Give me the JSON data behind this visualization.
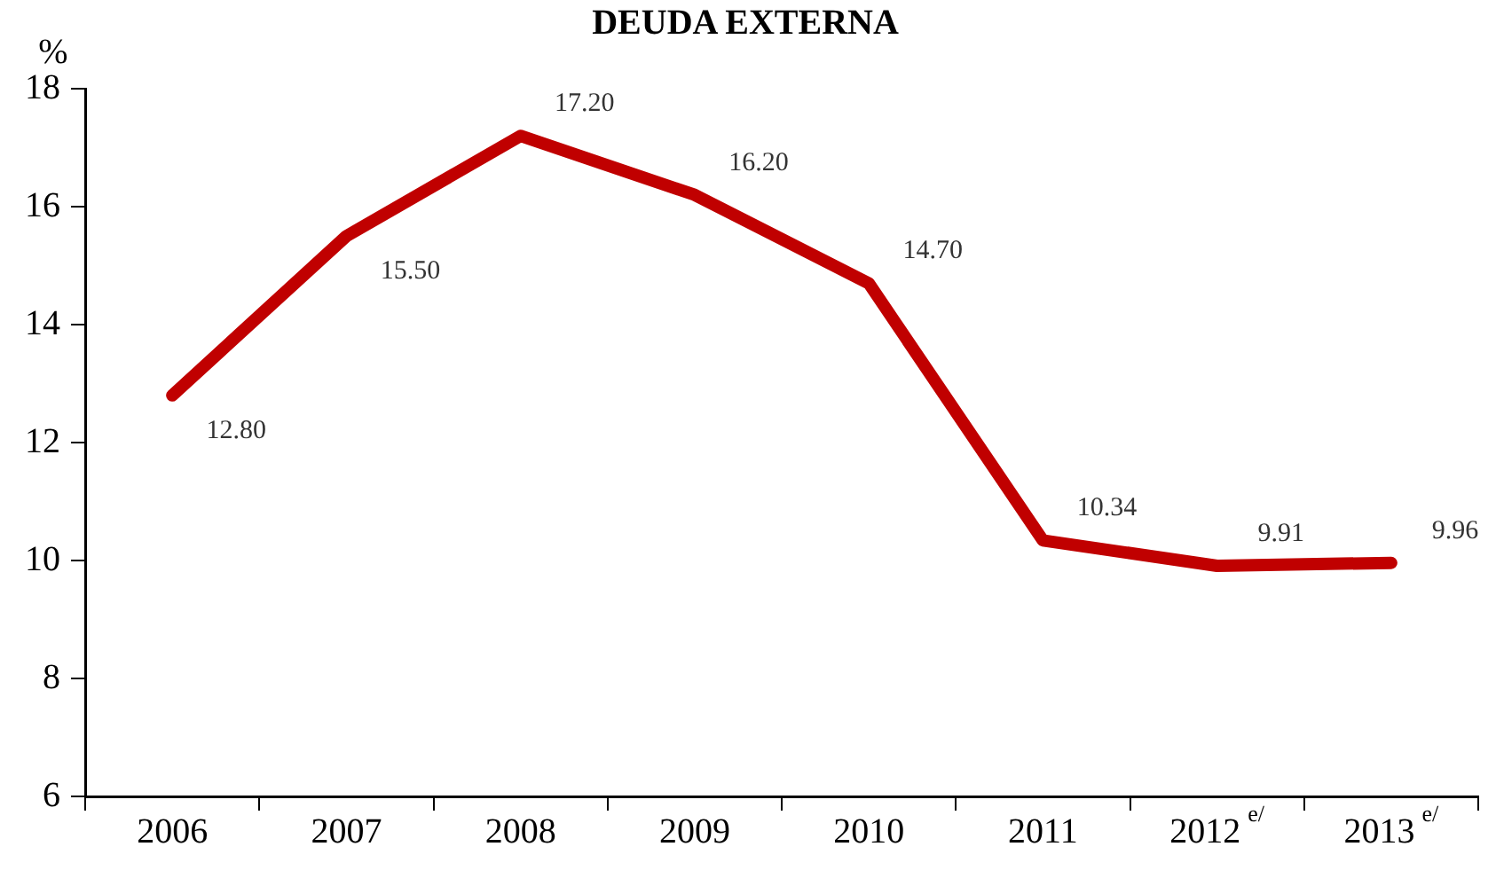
{
  "chart_data": {
    "type": "line",
    "title": "DEUDA EXTERNA",
    "ylabel": "%",
    "categories": [
      "2006",
      "2007",
      "2008",
      "2009",
      "2010",
      "2011",
      "2012$^{e/}$",
      "2013$^{e/}$"
    ],
    "series": [
      {
        "color": "#c00000",
        "values": [
          12.8,
          15.5,
          17.2,
          16.2,
          14.7,
          10.34,
          9.91,
          9.96
        ],
        "value_labels": [
          "12.80",
          "15.50",
          "17.20",
          "16.20",
          "14.70",
          "10.34",
          "9.91",
          "9.96"
        ]
      }
    ],
    "ylim": [
      6,
      18
    ],
    "yticks": [
      6,
      8,
      10,
      12,
      14,
      16,
      18
    ],
    "grid": false,
    "legend": false,
    "marker": "none",
    "line_style": "solid"
  }
}
